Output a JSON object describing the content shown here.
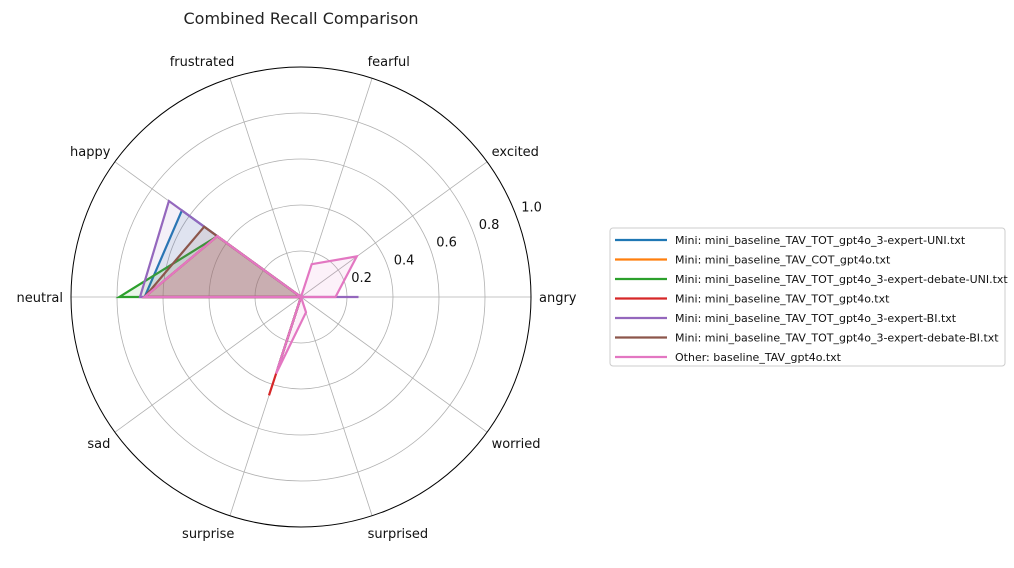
{
  "chart_data": {
    "type": "radar",
    "title": "Combined Recall Comparison",
    "categories": [
      "angry",
      "excited",
      "fearful",
      "frustrated",
      "happy",
      "neutral",
      "sad",
      "surprise",
      "surprised",
      "worried"
    ],
    "rlim": [
      0,
      1.0
    ],
    "rticks": [
      0.2,
      0.4,
      0.6,
      0.8,
      1.0
    ],
    "rtick_labels": [
      "0.2",
      "0.4",
      "0.6",
      "0.8",
      "1.0"
    ],
    "grid": true,
    "legend_position": "right",
    "series": [
      {
        "name": "Mini: mini_baseline_TAV_TOT_gpt4o_3-expert-UNI.txt",
        "color": "#1f77b4",
        "values": [
          0.0,
          0.0,
          0.0,
          0.0,
          0.64,
          0.68,
          0.0,
          0.33,
          0.0,
          0.0
        ]
      },
      {
        "name": "Mini: mini_baseline_TAV_COT_gpt4o.txt",
        "color": "#ff7f0e",
        "values": [
          0.0,
          0.0,
          0.0,
          0.0,
          0.45,
          0.68,
          0.0,
          0.3,
          0.0,
          0.0
        ]
      },
      {
        "name": "Mini: mini_baseline_TAV_TOT_gpt4o_3-expert-debate-UNI.txt",
        "color": "#2ca02c",
        "values": [
          0.0,
          0.0,
          0.0,
          0.0,
          0.45,
          0.79,
          0.0,
          0.3,
          0.0,
          0.0
        ]
      },
      {
        "name": "Mini: mini_baseline_TAV_TOT_gpt4o.txt",
        "color": "#d62728",
        "values": [
          0.0,
          0.0,
          0.0,
          0.0,
          0.45,
          0.68,
          0.0,
          0.45,
          0.0,
          0.0
        ]
      },
      {
        "name": "Mini: mini_baseline_TAV_TOT_gpt4o_3-expert-BI.txt",
        "color": "#9467bd",
        "values": [
          0.25,
          0.0,
          0.0,
          0.0,
          0.71,
          0.7,
          0.0,
          0.33,
          0.0,
          0.0
        ]
      },
      {
        "name": "Mini: mini_baseline_TAV_TOT_gpt4o_3-expert-debate-BI.txt",
        "color": "#8c564b",
        "values": [
          0.0,
          0.0,
          0.0,
          0.0,
          0.52,
          0.68,
          0.0,
          0.3,
          0.0,
          0.0
        ]
      },
      {
        "name": "Other: baseline_TAV_gpt4o.txt",
        "color": "#e377c2",
        "values": [
          0.15,
          0.3,
          0.15,
          0.0,
          0.45,
          0.68,
          0.0,
          0.35,
          0.07,
          0.0
        ]
      }
    ]
  }
}
